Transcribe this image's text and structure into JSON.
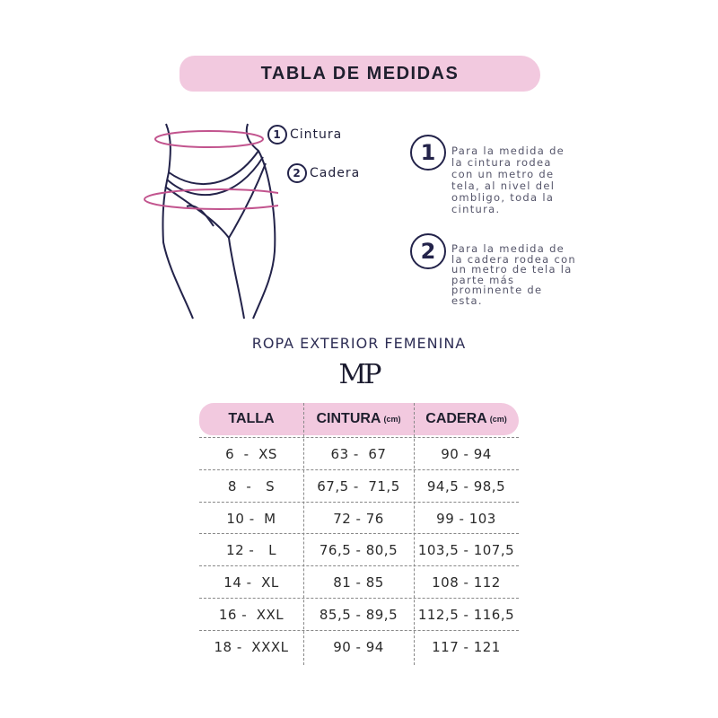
{
  "title": "TABLA DE MEDIDAS",
  "figure": {
    "label1_num": "1",
    "label1": "Cintura",
    "label2_num": "2",
    "label2": "Cadera"
  },
  "instructions": [
    {
      "num": "1",
      "text": "Para la medida de la cintura rodea con un metro de tela, al nivel del ombligo, toda la cintura."
    },
    {
      "num": "2",
      "text": "Para la medida de la cadera rodea con un metro de tela la parte más prominente de esta."
    }
  ],
  "subtitle": "ROPA EXTERIOR FEMENINA",
  "brand_logo": "MP",
  "colors": {
    "accent_pink": "#f2c9df",
    "measure_ring": "#c2548e",
    "outline": "#23234a"
  },
  "table": {
    "headers": [
      {
        "label": "TALLA",
        "unit": ""
      },
      {
        "label": "CINTURA",
        "unit": "(cm)"
      },
      {
        "label": "CADERA",
        "unit": "(cm)"
      }
    ],
    "rows": [
      [
        "6  -  XS",
        "63 -  67",
        "90 - 94"
      ],
      [
        "8  -   S",
        "67,5 -  71,5",
        "94,5 - 98,5"
      ],
      [
        "10 -  M",
        "72 - 76",
        "99 - 103"
      ],
      [
        "12 -   L",
        "76,5 - 80,5",
        "103,5 - 107,5"
      ],
      [
        "14 -  XL",
        "81 - 85",
        "108 - 112"
      ],
      [
        "16 -  XXL",
        "85,5 - 89,5",
        "112,5 - 116,5"
      ],
      [
        "18 -  XXXL",
        "90 - 94",
        "117 - 121"
      ]
    ]
  }
}
